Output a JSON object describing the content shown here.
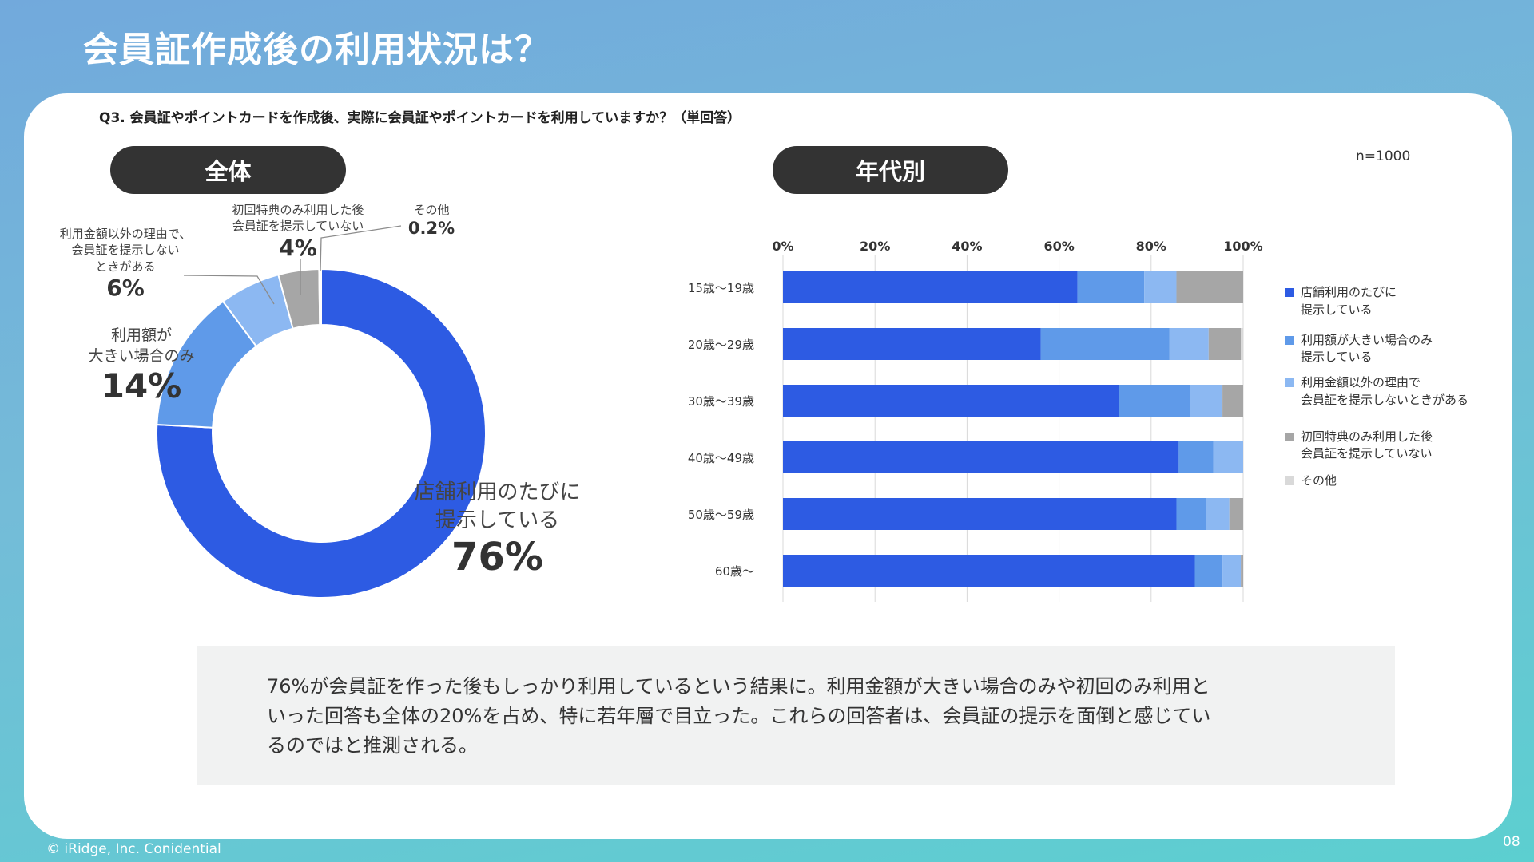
{
  "title": "会員証作成後の利用状況は？",
  "question": "Q3. 会員証やポイントカードを作成後、実際に会員証やポイントカードを利用していますか？（単回答）",
  "pill_total": "全体",
  "pill_age": "年代別",
  "n_label": "n=1000",
  "colors": {
    "every_time": "#2d5be3",
    "large_amount": "#5f9ae9",
    "other_reason": "#8cb8f2",
    "first_only": "#a6a6a6",
    "other": "#d9d9d9"
  },
  "chart_data": [
    {
      "type": "pie",
      "title": "全体",
      "slices": [
        {
          "label": "店舗利用のたびに提示している",
          "value": 76,
          "display": "76%"
        },
        {
          "label": "利用額が大きい場合のみ",
          "value": 14,
          "display": "14%"
        },
        {
          "label": "利用金額以外の理由で、会員証を提示しないときがある",
          "value": 6,
          "display": "6%"
        },
        {
          "label": "初回特典のみ利用した後会員証を提示していない",
          "value": 4,
          "display": "4%"
        },
        {
          "label": "その他",
          "value": 0.2,
          "display": "0.2%"
        }
      ],
      "labels": {
        "every_time": {
          "line1": "店舗利用のたびに",
          "line2": "提示している",
          "pct": "76%"
        },
        "large_amount": {
          "line1": "利用額が",
          "line2": "大きい場合のみ",
          "pct": "14%"
        },
        "other_reason": {
          "line1": "利用金額以外の理由で、",
          "line2": "会員証を提示しない",
          "line3": "ときがある",
          "pct": "6%"
        },
        "first_only": {
          "line1": "初回特典のみ利用した後",
          "line2": "会員証を提示していない",
          "pct": "4%"
        },
        "other": {
          "line1": "その他",
          "pct": "0.2%"
        }
      }
    },
    {
      "type": "bar",
      "stacked": true,
      "orientation": "horizontal",
      "title": "年代別",
      "categories": [
        "15歳〜19歳",
        "20歳〜29歳",
        "30歳〜39歳",
        "40歳〜49歳",
        "50歳〜59歳",
        "60歳〜"
      ],
      "xlim": [
        0,
        100
      ],
      "x_ticks": [
        "0%",
        "20%",
        "40%",
        "60%",
        "80%",
        "100%"
      ],
      "series": [
        {
          "name": "店舗利用のたびに提示している",
          "values": [
            64,
            56,
            73,
            86,
            85.5,
            89.5
          ]
        },
        {
          "name": "利用額が大きい場合のみ提示している",
          "values": [
            14.5,
            28,
            15.5,
            7.5,
            6.5,
            6
          ]
        },
        {
          "name": "利用金額以外の理由で会員証を提示しないときがある",
          "values": [
            7,
            8.5,
            7,
            6.5,
            5,
            4
          ]
        },
        {
          "name": "初回特典のみ利用した後会員証を提示していない",
          "values": [
            14.5,
            7,
            4.5,
            0,
            3,
            0.5
          ]
        },
        {
          "name": "その他",
          "values": [
            0,
            0.5,
            0,
            0,
            0,
            0
          ]
        }
      ],
      "legend": [
        {
          "line1": "店舗利用のたびに",
          "line2": "提示している"
        },
        {
          "line1": "利用額が大きい場合のみ",
          "line2": "提示している"
        },
        {
          "line1": "利用金額以外の理由で",
          "line2": "会員証を提示しないときがある"
        },
        {
          "line1": "初回特典のみ利用した後",
          "line2": "会員証を提示していない"
        },
        {
          "line1": "その他",
          "line2": ""
        }
      ],
      "legend_position": "right"
    }
  ],
  "summary": [
    "76%が会員証を作った後もしっかり利用しているという結果に。利用金額が大きい場合のみや初回のみ利用と",
    "いった回答も全体の20%を占め、特に若年層で目立った。これらの回答者は、会員証の提示を面倒と感じてい",
    "るのではと推測される。"
  ],
  "footer": "© iRidge, Inc. Conidential",
  "page_number": "08"
}
